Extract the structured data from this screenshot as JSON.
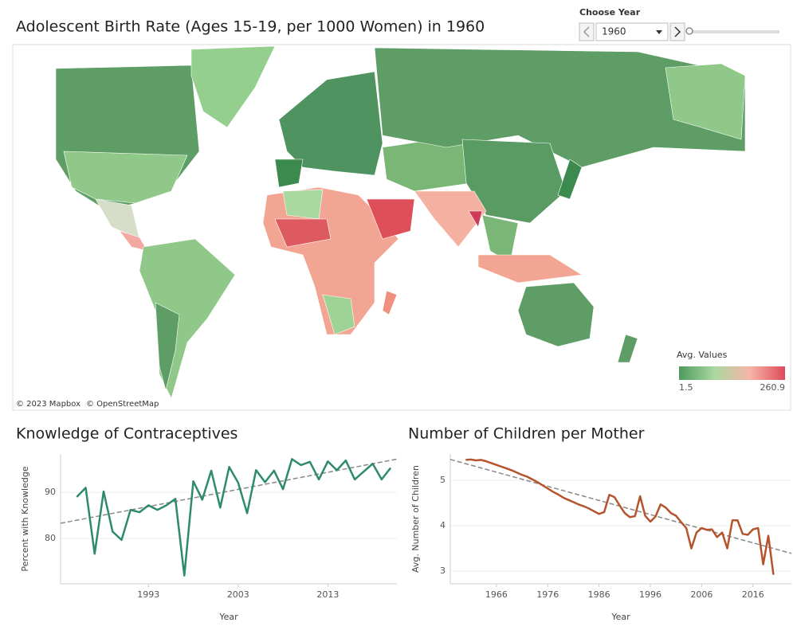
{
  "title": "Adolescent Birth Rate (Ages 15-19, per 1000 Women) in 1960",
  "control": {
    "label": "Choose Year",
    "value": "1960"
  },
  "map": {
    "legend_title": "Avg. Values",
    "legend_min": 1.5,
    "legend_max": 260.9,
    "colors": [
      "#4e9a5e",
      "#a9d8a0",
      "#f7b5a8",
      "#dd4a5b"
    ],
    "attribution": [
      "© 2023 Mapbox",
      "© OpenStreetMap"
    ]
  },
  "chart_data": [
    {
      "type": "line",
      "title": "Knowledge of Contraceptives",
      "x_label": "Year",
      "y_label": "Percent with Knowledge",
      "x": [
        1985,
        1986,
        1987,
        1988,
        1989,
        1990,
        1991,
        1992,
        1993,
        1994,
        1995,
        1996,
        1997,
        1998,
        1999,
        2000,
        2001,
        2002,
        2003,
        2004,
        2005,
        2006,
        2007,
        2008,
        2009,
        2010,
        2011,
        2012,
        2013,
        2014,
        2015,
        2016,
        2017,
        2018,
        2019,
        2020
      ],
      "series": [
        {
          "name": "Percent with Knowledge",
          "color": "#2e8b6a",
          "values": [
            89,
            91,
            76.7,
            90.2,
            81.5,
            79.7,
            86.2,
            85.7,
            87.2,
            86.2,
            87.2,
            88.6,
            72,
            92.4,
            88.4,
            94.7,
            86.7,
            95.5,
            92.1,
            85.5,
            94.8,
            92.2,
            94.7,
            90.7,
            97.2,
            95.9,
            96.6,
            92.8,
            96.7,
            94.8,
            96.9,
            92.8,
            94.5,
            96.2,
            92.8,
            95.3
          ]
        }
      ],
      "trendline": {
        "x": [
          1983.2,
          2020.7
        ],
        "values": [
          83.3,
          97.2
        ],
        "color": "#888888"
      },
      "xlim": [
        1983.2,
        2020.7
      ],
      "ylim": [
        70.2,
        98.3
      ],
      "xticks": [
        1993,
        2003,
        2013
      ],
      "yticks": [
        80,
        90
      ],
      "grid": true
    },
    {
      "type": "line",
      "title": "Number of Children per Mother",
      "x_label": "Year",
      "y_label": "Avg. Number of Children",
      "x": [
        1960,
        1961,
        1962,
        1963,
        1964,
        1965,
        1966,
        1967,
        1968,
        1969,
        1970,
        1971,
        1972,
        1973,
        1974,
        1975,
        1976,
        1977,
        1978,
        1979,
        1980,
        1981,
        1982,
        1983,
        1984,
        1985,
        1986,
        1987,
        1988,
        1989,
        1990,
        1991,
        1992,
        1993,
        1994,
        1995,
        1996,
        1997,
        1998,
        1999,
        2000,
        2001,
        2002,
        2003,
        2004,
        2005,
        2006,
        2007,
        2008,
        2009,
        2010,
        2011,
        2012,
        2013,
        2014,
        2015,
        2016,
        2017,
        2018,
        2019,
        2020
      ],
      "series": [
        {
          "name": "Avg. Number of Children",
          "color": "#b5542c",
          "values": [
            5.45,
            5.46,
            5.44,
            5.45,
            5.42,
            5.38,
            5.34,
            5.3,
            5.26,
            5.22,
            5.17,
            5.12,
            5.08,
            5.02,
            4.96,
            4.89,
            4.82,
            4.75,
            4.69,
            4.62,
            4.57,
            4.52,
            4.47,
            4.43,
            4.38,
            4.32,
            4.26,
            4.3,
            4.68,
            4.63,
            4.45,
            4.28,
            4.19,
            4.21,
            4.65,
            4.22,
            4.09,
            4.2,
            4.47,
            4.4,
            4.28,
            4.22,
            4.08,
            3.95,
            3.5,
            3.85,
            3.95,
            3.91,
            3.92,
            3.75,
            3.85,
            3.5,
            4.12,
            4.12,
            3.82,
            3.8,
            3.92,
            3.95,
            3.15,
            3.78,
            2.92
          ]
        }
      ],
      "trendline": {
        "x": [
          1957,
          2023.5
        ],
        "values": [
          5.46,
          3.39
        ],
        "color": "#888888"
      },
      "xlim": [
        1957,
        2023.5
      ],
      "ylim": [
        2.72,
        5.58
      ],
      "xticks": [
        1966,
        1976,
        1986,
        1996,
        2006,
        2016
      ],
      "yticks": [
        3,
        4,
        5
      ],
      "grid": true
    }
  ]
}
